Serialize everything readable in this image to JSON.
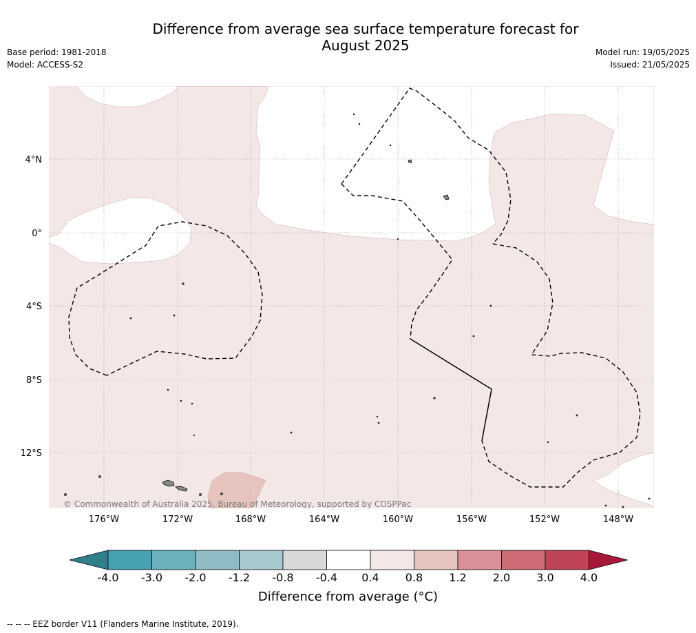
{
  "title_line1": "Difference from average sea surface temperature forecast for",
  "title_line2": "August 2025",
  "base_period": "Base period: 1981-2018",
  "model": "Model: ACCESS-S2",
  "model_run": "Model run: 19/05/2025",
  "issued": "Issued: 21/05/2025",
  "copyright": "© Commonwealth of Australia 2025, Bureau of Meteorology, supported by COSPPac",
  "lat_labels": [
    "4°N",
    "0°",
    "4°S",
    "8°S",
    "12°S"
  ],
  "lon_labels": [
    "176°W",
    "172°W",
    "168°W",
    "164°W",
    "160°W",
    "156°W",
    "152°W",
    "148°W"
  ],
  "colorbar": {
    "ticks": [
      "-4.0",
      "-3.0",
      "-2.0",
      "-1.2",
      "-0.8",
      "-0.4",
      "0.4",
      "0.8",
      "1.2",
      "2.0",
      "3.0",
      "4.0"
    ],
    "colors": [
      "#2f7f8a",
      "#46a2b2",
      "#6bb0bd",
      "#8fbcc6",
      "#a8c9ce",
      "#d8d8d8",
      "#ffffff",
      "#f4e8e7",
      "#e8c4bf",
      "#d99097",
      "#cc6a75",
      "#bf4457",
      "#a81838"
    ],
    "label": "Difference from average (°C)"
  },
  "footnote": "--  --  -- EEZ border V11 (Flanders Marine Institute, 2019).",
  "colors": {
    "anomaly_0.4_0.8": "#f4e8e7",
    "anomaly_0.8_1.2": "#e8c4bf",
    "neutral": "#ffffff"
  }
}
